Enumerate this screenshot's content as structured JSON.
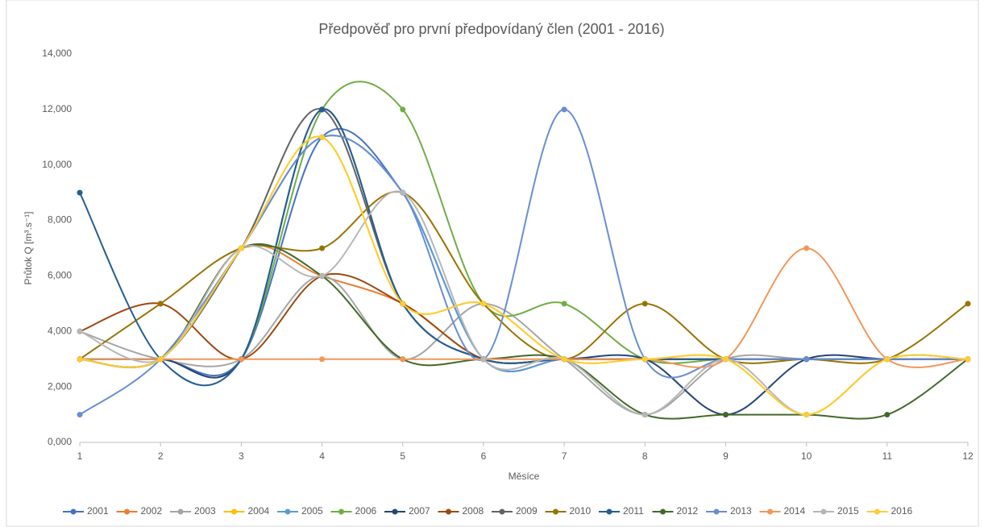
{
  "chart_data": {
    "type": "line",
    "smooth": true,
    "title": "Předpověď pro první předpovídaný člen (2001 - 2016)",
    "x_label": "Měsíce",
    "y_label": "Průtok Q [m³.s⁻¹]",
    "categories": [
      "1",
      "2",
      "3",
      "4",
      "5",
      "6",
      "7",
      "8",
      "9",
      "10",
      "11",
      "12"
    ],
    "ylim": [
      0,
      14000
    ],
    "yticks": [
      {
        "value": 0,
        "label": "0,000"
      },
      {
        "value": 2000,
        "label": "2,000"
      },
      {
        "value": 4000,
        "label": "4,000"
      },
      {
        "value": 6000,
        "label": "6,000"
      },
      {
        "value": 8000,
        "label": "8,000"
      },
      {
        "value": 10000,
        "label": "10,000"
      },
      {
        "value": 12000,
        "label": "12,000"
      },
      {
        "value": 14000,
        "label": "14,000"
      }
    ],
    "grid": false,
    "legend": "bottom",
    "series": [
      {
        "name": "2001",
        "color": "#4472c4",
        "values": [
          3000,
          3000,
          3000,
          11000,
          9000,
          3000,
          3000,
          3000,
          3000,
          3000,
          3000,
          3000
        ]
      },
      {
        "name": "2002",
        "color": "#ed7d31",
        "values": [
          3000,
          3000,
          7000,
          6000,
          5000,
          3000,
          3000,
          3000,
          3000,
          3000,
          3000,
          3000
        ]
      },
      {
        "name": "2003",
        "color": "#a5a5a5",
        "values": [
          4000,
          3000,
          3000,
          6000,
          3000,
          5000,
          3000,
          1000,
          3000,
          3000,
          3000,
          3000
        ]
      },
      {
        "name": "2004",
        "color": "#ffc000",
        "values": [
          3000,
          3000,
          7000,
          11000,
          5000,
          5000,
          3000,
          3000,
          3000,
          1000,
          3000,
          3000
        ]
      },
      {
        "name": "2005",
        "color": "#5b9bd5",
        "values": [
          3000,
          3000,
          7000,
          11000,
          9000,
          3000,
          3000,
          3000,
          3000,
          3000,
          3000,
          3000
        ]
      },
      {
        "name": "2006",
        "color": "#70ad47",
        "values": [
          3000,
          3000,
          3000,
          12000,
          12000,
          5000,
          5000,
          3000,
          3000,
          3000,
          3000,
          3000
        ]
      },
      {
        "name": "2007",
        "color": "#264478",
        "values": [
          3000,
          3000,
          3000,
          12000,
          5000,
          3000,
          3000,
          3000,
          1000,
          3000,
          3000,
          3000
        ]
      },
      {
        "name": "2008",
        "color": "#9e480e",
        "values": [
          4000,
          5000,
          3000,
          6000,
          5000,
          3000,
          3000,
          3000,
          3000,
          3000,
          3000,
          3000
        ]
      },
      {
        "name": "2009",
        "color": "#636363",
        "values": [
          3000,
          3000,
          7000,
          12000,
          5000,
          3000,
          3000,
          3000,
          3000,
          3000,
          3000,
          3000
        ]
      },
      {
        "name": "2010",
        "color": "#997300",
        "values": [
          3000,
          5000,
          7000,
          7000,
          9000,
          5000,
          3000,
          5000,
          3000,
          3000,
          3000,
          5000
        ]
      },
      {
        "name": "2011",
        "color": "#255e91",
        "values": [
          9000,
          3000,
          3000,
          12000,
          5000,
          3000,
          3000,
          3000,
          3000,
          3000,
          3000,
          3000
        ]
      },
      {
        "name": "2012",
        "color": "#43682b",
        "values": [
          3000,
          3000,
          7000,
          6000,
          3000,
          3000,
          3000,
          1000,
          1000,
          1000,
          1000,
          3000
        ]
      },
      {
        "name": "2013",
        "color": "#698ed0",
        "values": [
          1000,
          3000,
          7000,
          11000,
          9000,
          3000,
          12000,
          3000,
          3000,
          3000,
          3000,
          3000
        ]
      },
      {
        "name": "2014",
        "color": "#f1975a",
        "values": [
          3000,
          3000,
          3000,
          3000,
          3000,
          3000,
          3000,
          3000,
          3000,
          7000,
          3000,
          3000
        ]
      },
      {
        "name": "2015",
        "color": "#b7b7b7",
        "values": [
          4000,
          3000,
          7000,
          6000,
          9000,
          3000,
          3000,
          1000,
          3000,
          1000,
          3000,
          3000
        ]
      },
      {
        "name": "2016",
        "color": "#ffcd33",
        "values": [
          3000,
          3000,
          7000,
          11000,
          5000,
          5000,
          3000,
          3000,
          3000,
          1000,
          3000,
          3000
        ]
      }
    ]
  }
}
